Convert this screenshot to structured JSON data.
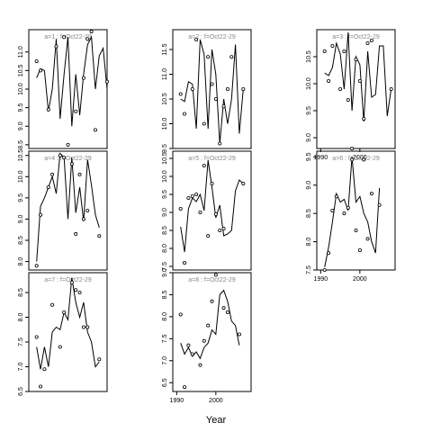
{
  "figure": {
    "xlabel": "Year",
    "x_tick_labels": [
      "1990",
      "2000"
    ]
  },
  "chart_data": [
    {
      "type": "line",
      "title": "a=1 : f=Oct22-29",
      "xlim": [
        1989,
        2009
      ],
      "ylim": [
        8.4,
        11.6
      ],
      "yticks": [
        8.5,
        9.0,
        9.5,
        10.0,
        10.5,
        11.0
      ],
      "ytick_labels": [
        "8.5",
        "9.0",
        "9.5",
        "10.0",
        "10.5",
        "11.0"
      ],
      "xticks": [],
      "xtick_labels": [],
      "line": [
        [
          1991,
          10.3
        ],
        [
          1992,
          10.55
        ],
        [
          1993,
          10.5
        ],
        [
          1994,
          9.4
        ],
        [
          1995,
          10.0
        ],
        [
          1996,
          11.35
        ],
        [
          1997,
          9.2
        ],
        [
          1998,
          10.4
        ],
        [
          1999,
          11.4
        ],
        [
          2000,
          9.0
        ],
        [
          2001,
          10.4
        ],
        [
          2002,
          9.3
        ],
        [
          2003,
          10.4
        ],
        [
          2004,
          11.2
        ],
        [
          2005,
          11.4
        ],
        [
          2006,
          10.0
        ],
        [
          2007,
          10.9
        ],
        [
          2008,
          11.1
        ],
        [
          2009,
          10.0
        ]
      ],
      "points": [
        [
          1991,
          10.75
        ],
        [
          1992,
          10.5
        ],
        [
          1994,
          9.45
        ],
        [
          1996,
          11.15
        ],
        [
          1998,
          11.4
        ],
        [
          1999,
          8.5
        ],
        [
          2001,
          9.4
        ],
        [
          2003,
          10.3
        ],
        [
          2004,
          11.35
        ],
        [
          2005,
          11.55
        ],
        [
          2006,
          8.9
        ],
        [
          2009,
          10.2
        ]
      ]
    },
    {
      "type": "line",
      "title": "a=4 : f=Oct22-29",
      "xlim": [
        1989,
        2009
      ],
      "ylim": [
        7.8,
        10.6
      ],
      "yticks": [
        8.0,
        8.5,
        9.0,
        9.5,
        10.0,
        10.5
      ],
      "ytick_labels": [
        "8.0",
        "8.5",
        "9.0",
        "9.5",
        "10.0",
        "10.5"
      ],
      "xticks": [],
      "xtick_labels": [],
      "line": [
        [
          1991,
          8.0
        ],
        [
          1992,
          9.3
        ],
        [
          1993,
          9.5
        ],
        [
          1994,
          9.75
        ],
        [
          1995,
          10.0
        ],
        [
          1996,
          9.6
        ],
        [
          1997,
          10.55
        ],
        [
          1998,
          10.45
        ],
        [
          1999,
          9.0
        ],
        [
          2000,
          10.45
        ],
        [
          2001,
          9.15
        ],
        [
          2002,
          9.75
        ],
        [
          2003,
          8.95
        ],
        [
          2004,
          10.4
        ],
        [
          2005,
          9.8
        ],
        [
          2006,
          9.1
        ],
        [
          2007,
          8.8
        ]
      ],
      "points": [
        [
          1991,
          7.9
        ],
        [
          1992,
          9.1
        ],
        [
          1994,
          9.75
        ],
        [
          1995,
          10.05
        ],
        [
          1997,
          10.5
        ],
        [
          1998,
          10.45
        ],
        [
          2000,
          10.3
        ],
        [
          2001,
          8.65
        ],
        [
          2002,
          10.05
        ],
        [
          2003,
          9.0
        ],
        [
          2004,
          9.2
        ],
        [
          2007,
          8.6
        ]
      ]
    },
    {
      "type": "line",
      "title": "a=7 : f=Oct22-29",
      "xlim": [
        1989,
        2009
      ],
      "ylim": [
        6.5,
        8.9
      ],
      "yticks": [
        6.5,
        7.0,
        7.5,
        8.0,
        8.5
      ],
      "ytick_labels": [
        "6.5",
        "7.0",
        "7.5",
        "8.0",
        "8.5"
      ],
      "xticks": [],
      "xtick_labels": [],
      "line": [
        [
          1991,
          7.4
        ],
        [
          1992,
          6.95
        ],
        [
          1993,
          7.4
        ],
        [
          1994,
          7.0
        ],
        [
          1995,
          7.7
        ],
        [
          1996,
          7.8
        ],
        [
          1997,
          7.75
        ],
        [
          1998,
          8.1
        ],
        [
          1999,
          7.95
        ],
        [
          2000,
          8.8
        ],
        [
          2001,
          8.3
        ],
        [
          2002,
          8.0
        ],
        [
          2003,
          8.3
        ],
        [
          2004,
          7.7
        ],
        [
          2005,
          7.5
        ],
        [
          2006,
          7.0
        ],
        [
          2007,
          7.1
        ]
      ],
      "points": [
        [
          1991,
          7.6
        ],
        [
          1992,
          6.6
        ],
        [
          1993,
          6.95
        ],
        [
          1995,
          8.25
        ],
        [
          1997,
          7.4
        ],
        [
          1998,
          8.1
        ],
        [
          2000,
          8.7
        ],
        [
          2001,
          8.55
        ],
        [
          2002,
          8.5
        ],
        [
          2003,
          7.8
        ],
        [
          2004,
          7.8
        ],
        [
          2007,
          7.15
        ]
      ]
    },
    {
      "type": "line",
      "title": "a=2 : f=Oct22-29",
      "xlim": [
        1989,
        2009
      ],
      "ylim": [
        9.5,
        11.9
      ],
      "yticks": [
        9.5,
        10.0,
        10.5,
        11.0,
        11.5
      ],
      "ytick_labels": [
        "9.5",
        "10.0",
        "10.5",
        "11.0",
        "11.5"
      ],
      "xticks": [],
      "xtick_labels": [],
      "line": [
        [
          1991,
          10.5
        ],
        [
          1992,
          10.45
        ],
        [
          1993,
          10.85
        ],
        [
          1994,
          10.8
        ],
        [
          1995,
          9.9
        ],
        [
          1996,
          11.7
        ],
        [
          1997,
          11.4
        ],
        [
          1998,
          9.9
        ],
        [
          1999,
          11.5
        ],
        [
          2000,
          11.0
        ],
        [
          2001,
          9.6
        ],
        [
          2002,
          10.5
        ],
        [
          2003,
          10.0
        ],
        [
          2004,
          10.5
        ],
        [
          2005,
          11.6
        ],
        [
          2006,
          9.8
        ],
        [
          2007,
          10.7
        ]
      ],
      "points": [
        [
          1991,
          10.6
        ],
        [
          1992,
          10.2
        ],
        [
          1994,
          10.7
        ],
        [
          1995,
          11.7
        ],
        [
          1997,
          10.0
        ],
        [
          1998,
          11.35
        ],
        [
          1999,
          10.8
        ],
        [
          2000,
          10.5
        ],
        [
          2001,
          9.6
        ],
        [
          2002,
          10.35
        ],
        [
          2003,
          10.7
        ],
        [
          2004,
          11.35
        ],
        [
          2007,
          10.7
        ]
      ]
    },
    {
      "type": "line",
      "title": "a=5 : f=Oct22-29",
      "xlim": [
        1989,
        2009
      ],
      "ylim": [
        7.4,
        10.7
      ],
      "yticks": [
        7.5,
        8.0,
        8.5,
        9.0,
        9.5,
        10.0,
        10.5
      ],
      "ytick_labels": [
        "7.5",
        "8.0",
        "8.5",
        "9.0",
        "9.5",
        "10.0",
        "10.5"
      ],
      "xticks": [],
      "xtick_labels": [],
      "line": [
        [
          1991,
          8.6
        ],
        [
          1992,
          7.9
        ],
        [
          1993,
          9.1
        ],
        [
          1994,
          9.4
        ],
        [
          1995,
          9.3
        ],
        [
          1996,
          9.5
        ],
        [
          1997,
          9.05
        ],
        [
          1998,
          10.45
        ],
        [
          1999,
          9.7
        ],
        [
          2000,
          8.85
        ],
        [
          2001,
          9.2
        ],
        [
          2002,
          8.35
        ],
        [
          2003,
          8.4
        ],
        [
          2004,
          8.5
        ],
        [
          2005,
          9.6
        ],
        [
          2006,
          9.9
        ],
        [
          2007,
          9.8
        ]
      ],
      "points": [
        [
          1991,
          9.1
        ],
        [
          1992,
          7.6
        ],
        [
          1993,
          9.4
        ],
        [
          1994,
          9.45
        ],
        [
          1995,
          9.5
        ],
        [
          1996,
          9.0
        ],
        [
          1997,
          10.3
        ],
        [
          1998,
          8.35
        ],
        [
          1999,
          9.8
        ],
        [
          2000,
          8.95
        ],
        [
          2001,
          8.5
        ],
        [
          2002,
          8.55
        ],
        [
          2007,
          9.8
        ]
      ]
    },
    {
      "type": "line",
      "title": "a=8 : f=Oct22-29",
      "xlim": [
        1989,
        2009
      ],
      "ylim": [
        6.3,
        9.0
      ],
      "yticks": [
        6.5,
        7.0,
        7.5,
        8.0,
        8.5,
        9.0
      ],
      "ytick_labels": [
        "6.5",
        "7.0",
        "7.5",
        "8.0",
        "8.5",
        "9.0"
      ],
      "xticks": [
        1990,
        2000
      ],
      "xtick_labels": [
        "1990",
        "2000"
      ],
      "line": [
        [
          1991,
          7.4
        ],
        [
          1992,
          7.15
        ],
        [
          1993,
          7.3
        ],
        [
          1994,
          7.1
        ],
        [
          1995,
          7.2
        ],
        [
          1996,
          7.05
        ],
        [
          1997,
          7.3
        ],
        [
          1998,
          7.4
        ],
        [
          1999,
          7.7
        ],
        [
          2000,
          7.6
        ],
        [
          2001,
          8.5
        ],
        [
          2002,
          8.6
        ],
        [
          2003,
          8.35
        ],
        [
          2004,
          7.9
        ],
        [
          2005,
          7.8
        ],
        [
          2006,
          7.35
        ]
      ],
      "points": [
        [
          1991,
          8.05
        ],
        [
          1992,
          6.4
        ],
        [
          1993,
          7.35
        ],
        [
          1994,
          7.15
        ],
        [
          1996,
          6.9
        ],
        [
          1997,
          7.45
        ],
        [
          1998,
          7.8
        ],
        [
          1999,
          8.35
        ],
        [
          2000,
          8.95
        ],
        [
          2002,
          8.2
        ],
        [
          2003,
          8.1
        ],
        [
          2006,
          7.6
        ]
      ]
    },
    {
      "type": "line",
      "title": "a=3 : f=Oct22-29",
      "xlim": [
        1989,
        2009
      ],
      "ylim": [
        8.8,
        11.0
      ],
      "yticks": [
        9.0,
        9.5,
        10.0,
        10.5
      ],
      "ytick_labels": [
        "9.0",
        "9.5",
        "10.0",
        "10.5"
      ],
      "xticks": [
        1990,
        2000
      ],
      "xtick_labels": [
        "1990",
        "2000"
      ],
      "line": [
        [
          1991,
          10.2
        ],
        [
          1992,
          10.15
        ],
        [
          1993,
          10.3
        ],
        [
          1994,
          10.75
        ],
        [
          1995,
          10.55
        ],
        [
          1996,
          9.9
        ],
        [
          1997,
          10.95
        ],
        [
          1998,
          9.5
        ],
        [
          1999,
          10.5
        ],
        [
          2000,
          10.35
        ],
        [
          2001,
          9.3
        ],
        [
          2002,
          10.6
        ],
        [
          2003,
          9.75
        ],
        [
          2004,
          9.8
        ],
        [
          2005,
          10.7
        ],
        [
          2006,
          10.7
        ],
        [
          2007,
          9.4
        ],
        [
          2008,
          9.9
        ]
      ],
      "points": [
        [
          1991,
          10.6
        ],
        [
          1992,
          10.05
        ],
        [
          1993,
          10.7
        ],
        [
          1995,
          9.9
        ],
        [
          1996,
          10.6
        ],
        [
          1997,
          9.7
        ],
        [
          1998,
          8.8
        ],
        [
          1999,
          10.45
        ],
        [
          2000,
          10.05
        ],
        [
          2001,
          9.35
        ],
        [
          2002,
          10.75
        ],
        [
          2003,
          10.8
        ],
        [
          2008,
          9.9
        ]
      ]
    },
    {
      "type": "line",
      "title": "a=6 : f=Oct22-29",
      "xlim": [
        1989,
        2009
      ],
      "ylim": [
        7.5,
        9.6
      ],
      "yticks": [
        7.5,
        8.0,
        8.5,
        9.0,
        9.5
      ],
      "ytick_labels": [
        "7.5",
        "8.0",
        "8.5",
        "9.0",
        "9.5"
      ],
      "xticks": [
        1990,
        2000
      ],
      "xtick_labels": [
        "1990",
        "2000"
      ],
      "line": [
        [
          1991,
          7.55
        ],
        [
          1992,
          7.9
        ],
        [
          1993,
          8.35
        ],
        [
          1994,
          8.85
        ],
        [
          1995,
          8.7
        ],
        [
          1996,
          8.75
        ],
        [
          1997,
          8.55
        ],
        [
          1998,
          9.5
        ],
        [
          1999,
          8.7
        ],
        [
          2000,
          8.8
        ],
        [
          2001,
          8.5
        ],
        [
          2002,
          8.35
        ],
        [
          2003,
          8.0
        ],
        [
          2004,
          7.8
        ],
        [
          2005,
          8.95
        ]
      ],
      "points": [
        [
          1991,
          7.5
        ],
        [
          1992,
          7.8
        ],
        [
          1993,
          8.55
        ],
        [
          1994,
          8.8
        ],
        [
          1996,
          8.5
        ],
        [
          1997,
          8.6
        ],
        [
          1998,
          9.45
        ],
        [
          1999,
          8.2
        ],
        [
          2000,
          7.85
        ],
        [
          2001,
          9.45
        ],
        [
          2002,
          8.05
        ],
        [
          2003,
          8.85
        ],
        [
          2005,
          8.65
        ]
      ]
    }
  ]
}
